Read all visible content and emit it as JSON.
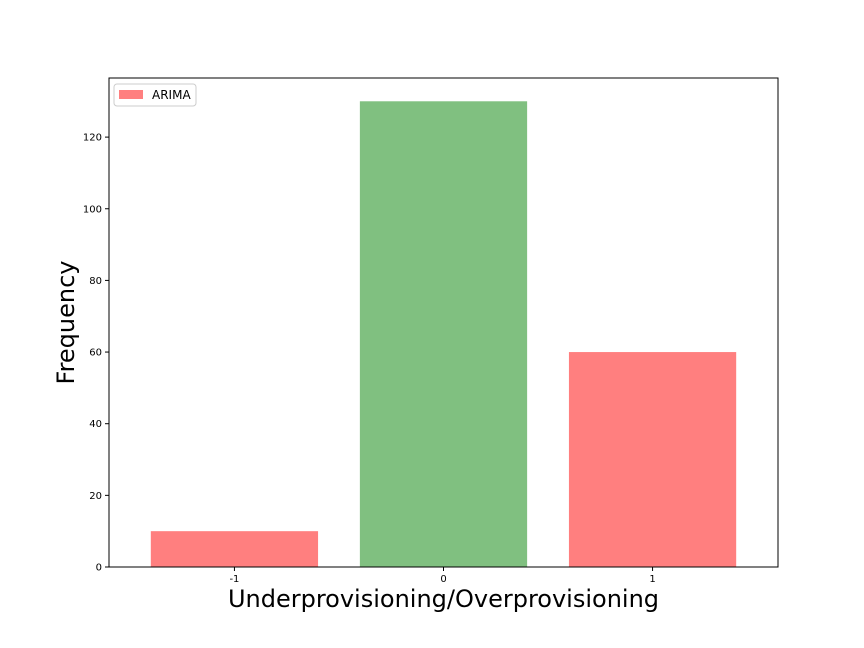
{
  "chart_data": {
    "type": "bar",
    "title": "",
    "xlabel": "Underprovisioning/Overprovisioning",
    "ylabel": "Frequency",
    "categories": [
      "-1",
      "0",
      "1"
    ],
    "values": [
      10,
      130,
      60
    ],
    "bar_colors": [
      "#ff7f7f",
      "#80c080",
      "#ff7f7f"
    ],
    "ylim": [
      0,
      136.5
    ],
    "yticks": [
      0,
      20,
      40,
      60,
      80,
      100,
      120
    ],
    "grid": false,
    "legend": {
      "placement": "top-left",
      "entries": [
        {
          "label": "ARIMA",
          "color": "#ff7f7f"
        }
      ]
    }
  }
}
